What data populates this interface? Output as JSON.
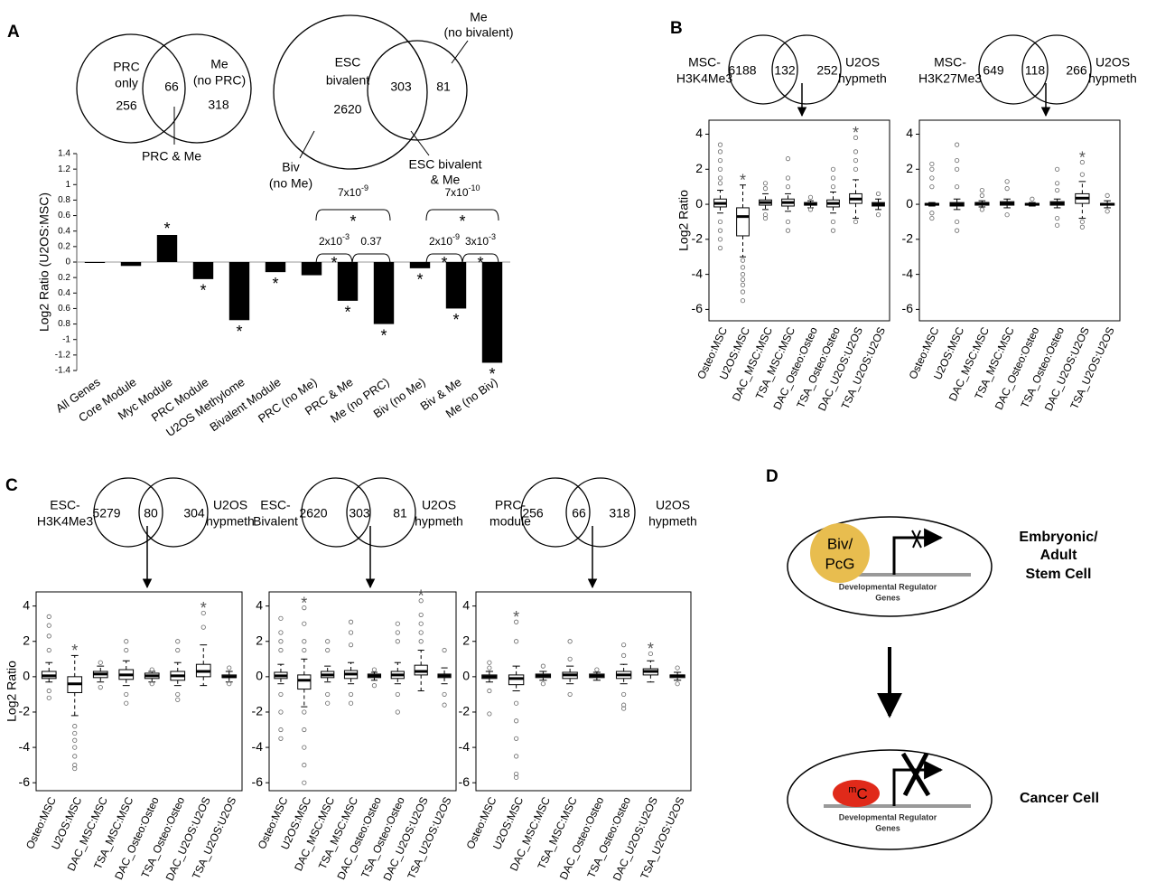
{
  "panels": [
    "A",
    "B",
    "C",
    "D"
  ],
  "venns": [
    {
      "left_label": [
        "PRC",
        "only"
      ],
      "right_label": [
        "Me",
        "(no PRC)"
      ],
      "counts": [
        256,
        66,
        318
      ],
      "callouts": [
        [
          "PRC & Me"
        ]
      ]
    },
    {
      "left_label": [
        "ESC",
        "bivalent"
      ],
      "right_label": [
        "Me",
        "(no bivalent)"
      ],
      "counts": [
        2620,
        303,
        81
      ],
      "callouts": [
        [
          "Biv",
          "(no Me)"
        ],
        [
          "ESC bivalent",
          "& Me"
        ]
      ]
    },
    {
      "left_label": [
        "MSC-",
        "H3K4Me3"
      ],
      "right_label": [
        "U2OS",
        "hypmeth"
      ],
      "counts": [
        6188,
        132,
        252
      ]
    },
    {
      "left_label": [
        "MSC-",
        "H3K27Me3"
      ],
      "right_label": [
        "U2OS",
        "hypmeth"
      ],
      "counts": [
        649,
        118,
        266
      ]
    },
    {
      "left_label": [
        "ESC-",
        "H3K4Me3"
      ],
      "right_label": [
        "U2OS",
        "hypmeth"
      ],
      "counts": [
        5279,
        80,
        304
      ]
    },
    {
      "left_label": [
        "ESC-",
        "Bivalent"
      ],
      "right_label": [
        "U2OS",
        "hypmeth"
      ],
      "counts": [
        2620,
        303,
        81
      ]
    },
    {
      "left_label": [
        "PRC-",
        "module"
      ],
      "right_label": [
        "U2OS",
        "hypmeth"
      ],
      "counts": [
        256,
        66,
        318
      ]
    }
  ],
  "chart_data": [
    {
      "type": "bar",
      "ylabel": "Log2 Ratio (U2OS:MSC)",
      "categories": [
        "All Genes",
        "Core Module",
        "Myc Module",
        "PRC Module",
        "U2OS Methylome",
        "Bivalent Module",
        "PRC (no Me)",
        "PRC & Me",
        "Me (no PRC)",
        "Biv (no Me)",
        "Biv & Me",
        "Me (no Biv)"
      ],
      "values": [
        0,
        -0.05,
        0.35,
        -0.22,
        -0.75,
        -0.13,
        -0.17,
        -0.5,
        -0.8,
        -0.08,
        -0.6,
        -1.3
      ],
      "color": "#000000",
      "significance": [
        null,
        null,
        "*",
        "*",
        "*",
        "*",
        null,
        "*",
        "*",
        "*",
        "*",
        "*"
      ],
      "comparisons": [
        {
          "base": "7x10",
          "exp": "-9",
          "mark": "*"
        },
        {
          "base": "2x10",
          "exp": "-3",
          "mark": "*"
        },
        {
          "label": "0.37"
        },
        {
          "base": "7x10",
          "exp": "-10",
          "mark": "*"
        },
        {
          "base": "2x10",
          "exp": "-9",
          "mark": "*"
        },
        {
          "base": "3x10",
          "exp": "-3",
          "mark": "*"
        }
      ],
      "ylim": [
        -1.4,
        1.4
      ],
      "yticks": [
        1.4,
        1.2,
        1,
        0.8,
        0.6,
        0.4,
        0.2,
        0,
        {
          "value": -0.2,
          "label": "0.2"
        },
        {
          "value": -0.4,
          "label": "0.4"
        },
        {
          "value": -0.6,
          "label": "0.6"
        },
        {
          "value": -0.8,
          "label": "0.8"
        },
        -1,
        -1.2,
        -1.4
      ]
    },
    {
      "type": "box",
      "ylabel": "Log2 Ratio",
      "categories": [
        "Osteo:MSC",
        "U2OS:MSC",
        "DAC_MSC:MSC",
        "TSA_MSC:MSC",
        "DAC_Osteo:Osteo",
        "TSA_Osteo:Osteo",
        "DAC_U2OS:U2OS",
        "TSA_U2OS:U2OS"
      ],
      "boxes": [
        {
          "whislo": -0.5,
          "q1": -0.15,
          "med": 0.05,
          "q3": 0.3,
          "whishi": 0.8,
          "outliers": [
            3.4,
            3.0,
            2.5,
            2.0,
            1.5,
            1.2,
            -1.0,
            -1.5,
            -2.0,
            -2.5
          ]
        },
        {
          "whislo": -3.0,
          "q1": -1.8,
          "med": -0.7,
          "q3": -0.2,
          "whishi": 1.1,
          "outliers": [
            -3.2,
            -3.6,
            -4.0,
            -4.3,
            -4.6,
            -5.0,
            -5.5
          ]
        },
        {
          "whislo": -0.3,
          "q1": -0.05,
          "med": 0.1,
          "q3": 0.25,
          "whishi": 0.6,
          "outliers": [
            1.2,
            0.9,
            -0.6,
            -0.8
          ]
        },
        {
          "whislo": -0.4,
          "q1": -0.1,
          "med": 0.1,
          "q3": 0.3,
          "whishi": 0.6,
          "outliers": [
            2.6,
            1.5,
            1.0,
            -1.0,
            -1.5
          ]
        },
        {
          "whislo": -0.2,
          "q1": -0.05,
          "med": 0,
          "q3": 0.1,
          "whishi": 0.2,
          "outliers": [
            0.4,
            -0.3
          ]
        },
        {
          "whislo": -0.5,
          "q1": -0.15,
          "med": 0.05,
          "q3": 0.25,
          "whishi": 0.7,
          "outliers": [
            2.0,
            1.5,
            1.0,
            -1.0,
            -1.5
          ]
        },
        {
          "whislo": -0.8,
          "q1": 0.05,
          "med": 0.3,
          "q3": 0.6,
          "whishi": 1.4,
          "outliers": [
            3.8,
            3.0,
            2.5,
            2.0,
            -1.0
          ]
        },
        {
          "whislo": -0.3,
          "q1": -0.1,
          "med": 0,
          "q3": 0.1,
          "whishi": 0.3,
          "outliers": [
            0.6,
            -0.6
          ]
        }
      ],
      "significance": [
        null,
        "*",
        null,
        null,
        null,
        null,
        "*",
        null
      ],
      "ylim": [
        -6.65,
        4.8
      ],
      "yticks": [
        -6,
        -4,
        -2,
        0,
        2,
        4
      ]
    },
    {
      "type": "box",
      "categories": [
        "Osteo:MSC",
        "U2OS:MSC",
        "DAC_MSC:MSC",
        "TSA_MSC:MSC",
        "DAC_Osteo:Osteo",
        "TSA_Osteo:Osteo",
        "DAC_U2OS:U2OS",
        "TSA_U2OS:U2OS"
      ],
      "boxes": [
        {
          "whislo": -0.1,
          "q1": -0.05,
          "med": 0,
          "q3": 0.05,
          "whishi": 0.1,
          "outliers": [
            2.3,
            2.0,
            1.5,
            1.0,
            -0.5,
            -0.8
          ]
        },
        {
          "whislo": -0.3,
          "q1": -0.1,
          "med": 0,
          "q3": 0.1,
          "whishi": 0.3,
          "outliers": [
            3.4,
            2.5,
            2.0,
            1.0,
            -1.0,
            -1.5
          ]
        },
        {
          "whislo": -0.15,
          "q1": -0.05,
          "med": 0.05,
          "q3": 0.1,
          "whishi": 0.2,
          "outliers": [
            0.8,
            0.5,
            -0.3
          ]
        },
        {
          "whislo": -0.2,
          "q1": -0.05,
          "med": 0.05,
          "q3": 0.15,
          "whishi": 0.3,
          "outliers": [
            1.3,
            0.9,
            -0.6
          ]
        },
        {
          "whislo": -0.1,
          "q1": -0.05,
          "med": 0,
          "q3": 0.05,
          "whishi": 0.1,
          "outliers": [
            0.3
          ]
        },
        {
          "whislo": -0.2,
          "q1": -0.05,
          "med": 0.05,
          "q3": 0.15,
          "whishi": 0.3,
          "outliers": [
            2.0,
            1.2,
            0.8,
            -0.8,
            -1.2
          ]
        },
        {
          "whislo": -0.8,
          "q1": 0.05,
          "med": 0.35,
          "q3": 0.6,
          "whishi": 1.3,
          "outliers": [
            2.4,
            1.7,
            -1.0,
            -1.3
          ]
        },
        {
          "whislo": -0.2,
          "q1": -0.05,
          "med": 0,
          "q3": 0.05,
          "whishi": 0.2,
          "outliers": [
            0.5,
            -0.4
          ]
        }
      ],
      "significance": [
        null,
        null,
        null,
        null,
        null,
        null,
        "*",
        null
      ],
      "ylim": [
        -6.65,
        4.8
      ],
      "yticks": [
        -6,
        -4,
        -2,
        0,
        2,
        4
      ]
    },
    {
      "type": "box",
      "ylabel": "Log2 Ratio",
      "categories": [
        "Osteo:MSC",
        "U2OS:MSC",
        "DAC_MSC:MSC",
        "TSA_MSC:MSC",
        "DAC_Osteo:Osteo",
        "TSA_Osteo:Osteo",
        "DAC_U2OS:U2OS",
        "TSA_U2OS:U2OS"
      ],
      "boxes": [
        {
          "whislo": -0.3,
          "q1": -0.1,
          "med": 0.05,
          "q3": 0.3,
          "whishi": 0.8,
          "outliers": [
            3.4,
            2.9,
            2.3,
            1.5,
            -0.8,
            -1.2
          ]
        },
        {
          "whislo": -2.2,
          "q1": -0.9,
          "med": -0.4,
          "q3": 0,
          "whishi": 1.2,
          "outliers": [
            -2.8,
            -3.2,
            -3.6,
            -4.0,
            -4.5,
            -5.0,
            -5.2
          ]
        },
        {
          "whislo": -0.3,
          "q1": -0.05,
          "med": 0.15,
          "q3": 0.3,
          "whishi": 0.6,
          "outliers": [
            0.8,
            -0.6
          ]
        },
        {
          "whislo": -0.5,
          "q1": -0.15,
          "med": 0.1,
          "q3": 0.4,
          "whishi": 0.9,
          "outliers": [
            2.0,
            1.5,
            -1.0,
            -1.5
          ]
        },
        {
          "whislo": -0.3,
          "q1": -0.1,
          "med": 0.05,
          "q3": 0.2,
          "whishi": 0.3,
          "outliers": [
            0.4,
            -0.4
          ]
        },
        {
          "whislo": -0.5,
          "q1": -0.2,
          "med": 0.05,
          "q3": 0.3,
          "whishi": 0.8,
          "outliers": [
            2.0,
            1.5,
            -1.0,
            -1.3
          ]
        },
        {
          "whislo": -0.5,
          "q1": 0,
          "med": 0.3,
          "q3": 0.7,
          "whishi": 1.8,
          "outliers": [
            3.6,
            2.8
          ]
        },
        {
          "whislo": -0.3,
          "q1": -0.05,
          "med": 0,
          "q3": 0.1,
          "whishi": 0.3,
          "outliers": [
            0.5,
            -0.4
          ]
        }
      ],
      "significance": [
        null,
        "*",
        null,
        null,
        null,
        null,
        "*",
        null
      ],
      "ylim": [
        -6.45,
        4.8
      ],
      "yticks": [
        -6,
        -4,
        -2,
        0,
        2,
        4
      ]
    },
    {
      "type": "box",
      "categories": [
        "Osteo:MSC",
        "U2OS:MSC",
        "DAC_MSC:MSC",
        "TSA_MSC:MSC",
        "DAC_Osteo:Osteo",
        "TSA_Osteo:Osteo",
        "DAC_U2OS:U2OS",
        "TSA_U2OS:U2OS"
      ],
      "boxes": [
        {
          "whislo": -0.4,
          "q1": -0.1,
          "med": 0.05,
          "q3": 0.25,
          "whishi": 0.7,
          "outliers": [
            3.3,
            2.5,
            2.0,
            1.5,
            -1.0,
            -2.0,
            -3.0,
            -3.5
          ]
        },
        {
          "whislo": -1.7,
          "q1": -0.7,
          "med": -0.2,
          "q3": 0.1,
          "whishi": 1.0,
          "outliers": [
            3.9,
            3.0,
            2.0,
            1.5,
            -2.0,
            -3.0,
            -4.0,
            -5.0,
            -6.0
          ]
        },
        {
          "whislo": -0.3,
          "q1": -0.05,
          "med": 0.1,
          "q3": 0.3,
          "whishi": 0.6,
          "outliers": [
            2.0,
            1.5,
            -1.0,
            -1.5
          ]
        },
        {
          "whislo": -0.4,
          "q1": -0.1,
          "med": 0.15,
          "q3": 0.35,
          "whishi": 0.8,
          "outliers": [
            3.1,
            2.5,
            1.8,
            -1.0,
            -1.5
          ]
        },
        {
          "whislo": -0.2,
          "q1": -0.05,
          "med": 0.05,
          "q3": 0.15,
          "whishi": 0.25,
          "outliers": [
            0.4,
            -0.5
          ]
        },
        {
          "whislo": -0.4,
          "q1": -0.1,
          "med": 0.1,
          "q3": 0.3,
          "whishi": 0.8,
          "outliers": [
            3.0,
            2.5,
            2.0,
            -1.0,
            -2.0
          ]
        },
        {
          "whislo": -0.8,
          "q1": 0.1,
          "med": 0.3,
          "q3": 0.65,
          "whishi": 1.5,
          "outliers": [
            4.3,
            3.5,
            3.0,
            2.5,
            2.0
          ]
        },
        {
          "whislo": -0.4,
          "q1": -0.05,
          "med": 0.05,
          "q3": 0.15,
          "whishi": 0.5,
          "outliers": [
            1.5,
            -1.0,
            -1.6
          ]
        }
      ],
      "significance": [
        null,
        "*",
        null,
        null,
        null,
        null,
        "*",
        null
      ],
      "ylim": [
        -6.45,
        4.8
      ],
      "yticks": [
        -6,
        -4,
        -2,
        0,
        2,
        4
      ]
    },
    {
      "type": "box",
      "categories": [
        "Osteo:MSC",
        "U2OS:MSC",
        "DAC_MSC:MSC",
        "TSA_MSC:MSC",
        "DAC_Osteo:Osteo",
        "TSA_Osteo:Osteo",
        "DAC_U2OS:U2OS",
        "TSA_U2OS:U2OS"
      ],
      "boxes": [
        {
          "whislo": -0.3,
          "q1": -0.1,
          "med": 0,
          "q3": 0.1,
          "whishi": 0.3,
          "outliers": [
            0.8,
            0.5,
            -0.8,
            -2.1
          ]
        },
        {
          "whislo": -0.8,
          "q1": -0.45,
          "med": -0.1,
          "q3": 0.1,
          "whishi": 0.6,
          "outliers": [
            3.1,
            2.0,
            -1.5,
            -2.5,
            -3.5,
            -4.5,
            -5.5,
            -5.7
          ]
        },
        {
          "whislo": -0.2,
          "q1": -0.05,
          "med": 0.05,
          "q3": 0.15,
          "whishi": 0.3,
          "outliers": [
            0.6,
            -0.4
          ]
        },
        {
          "whislo": -0.4,
          "q1": -0.1,
          "med": 0.1,
          "q3": 0.25,
          "whishi": 0.6,
          "outliers": [
            2.0,
            1.0,
            -1.0
          ]
        },
        {
          "whislo": -0.2,
          "q1": -0.05,
          "med": 0.05,
          "q3": 0.15,
          "whishi": 0.25,
          "outliers": [
            0.4
          ]
        },
        {
          "whislo": -0.4,
          "q1": -0.1,
          "med": 0.1,
          "q3": 0.3,
          "whishi": 0.7,
          "outliers": [
            1.8,
            1.2,
            -1.0,
            -1.6,
            -1.8
          ]
        },
        {
          "whislo": -0.3,
          "q1": 0.1,
          "med": 0.3,
          "q3": 0.45,
          "whishi": 0.9,
          "outliers": [
            1.3
          ]
        },
        {
          "whislo": -0.2,
          "q1": -0.05,
          "med": 0.05,
          "q3": 0.1,
          "whishi": 0.25,
          "outliers": [
            0.5,
            -0.4
          ]
        }
      ],
      "significance": [
        null,
        "*",
        null,
        null,
        null,
        null,
        "*",
        null
      ],
      "ylim": [
        -6.45,
        4.8
      ],
      "yticks": [
        -6,
        -4,
        -2,
        0,
        2,
        4
      ]
    }
  ],
  "diagram": {
    "stem": {
      "factor": [
        "Biv/",
        "PcG"
      ],
      "gene": [
        "Developmental Regulator",
        "Genes"
      ],
      "label": [
        "Embryonic/",
        "Adult",
        "Stem Cell"
      ]
    },
    "cancer": {
      "mark_sup": "m",
      "mark_base": "C",
      "gene": [
        "Developmental Regulator",
        "Genes"
      ],
      "label": [
        "Cancer Cell"
      ]
    }
  }
}
